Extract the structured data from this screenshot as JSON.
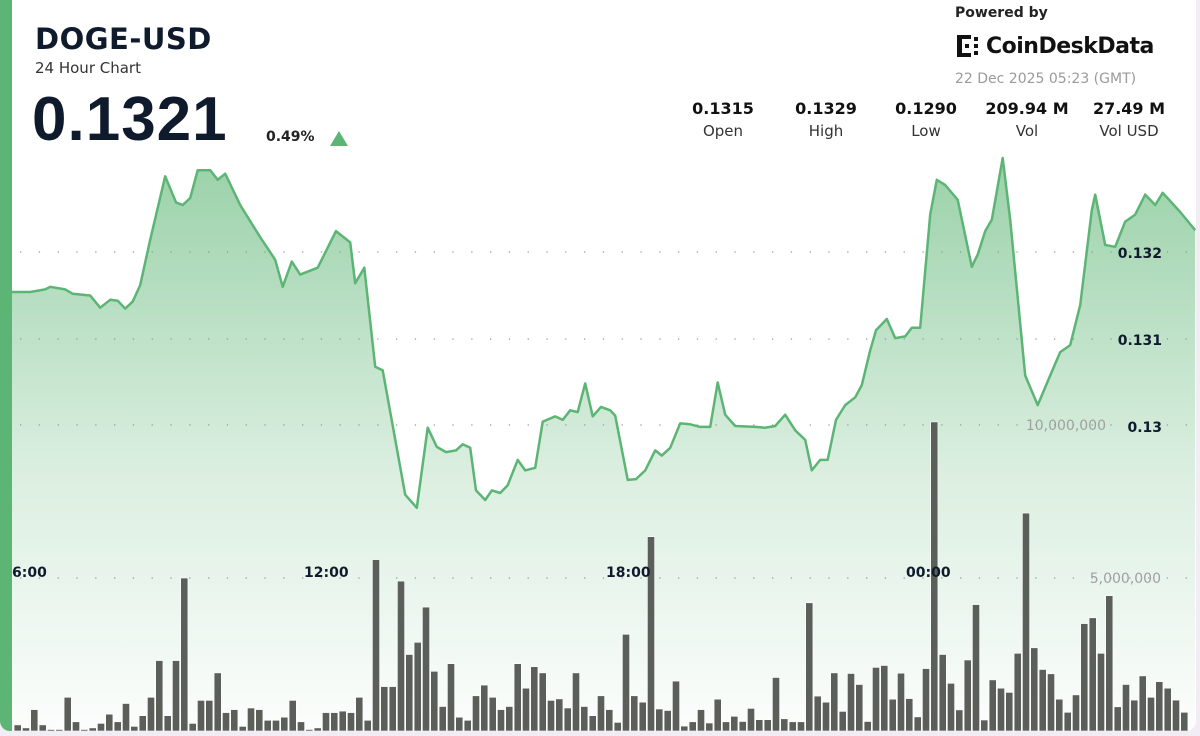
{
  "header": {
    "symbol": "DOGE-USD",
    "subtitle": "24 Hour Chart",
    "price": "0.1321",
    "change": "0.49%",
    "change_direction": "up",
    "powered_by": "Powered by",
    "brand": "CoinDeskData",
    "timestamp": "22 Dec 2025 05:23 (GMT)"
  },
  "stats": [
    {
      "value": "0.1315",
      "label": "Open"
    },
    {
      "value": "0.1329",
      "label": "High"
    },
    {
      "value": "0.1290",
      "label": "Low"
    },
    {
      "value": "209.94 M",
      "label": "Vol"
    },
    {
      "value": "27.49 M",
      "label": "Vol USD"
    }
  ],
  "colors": {
    "accent": "#5cb574",
    "line": "#5cb574",
    "volume": "#5a5f5a",
    "up": "#5cb574"
  },
  "chart_data": {
    "type": "area",
    "grid": true,
    "x_ticks": [
      "6:00",
      "12:00",
      "18:00",
      "00:00"
    ],
    "price_ticks": [
      "0.132",
      "0.131",
      "0.13"
    ],
    "volume_ticks": [
      "10,000,000",
      "5,000,000"
    ],
    "price_series": [
      [
        "05:43",
        0.13154
      ],
      [
        "06:05",
        0.13154
      ],
      [
        "06:23",
        0.13157
      ],
      [
        "06:29",
        0.1316
      ],
      [
        "06:47",
        0.13157
      ],
      [
        "06:56",
        0.13152
      ],
      [
        "07:17",
        0.1315
      ],
      [
        "07:29",
        0.13136
      ],
      [
        "07:41",
        0.13145
      ],
      [
        "07:50",
        0.13144
      ],
      [
        "07:59",
        0.13135
      ],
      [
        "08:08",
        0.13143
      ],
      [
        "08:17",
        0.13162
      ],
      [
        "08:29",
        0.13214
      ],
      [
        "08:47",
        0.13287
      ],
      [
        "09:00",
        0.13257
      ],
      [
        "09:08",
        0.13254
      ],
      [
        "09:17",
        0.13262
      ],
      [
        "09:26",
        0.13294
      ],
      [
        "09:41",
        0.13294
      ],
      [
        "09:50",
        0.13283
      ],
      [
        "09:59",
        0.1329
      ],
      [
        "10:17",
        0.13254
      ],
      [
        "10:41",
        0.13217
      ],
      [
        "10:59",
        0.13191
      ],
      [
        "11:08",
        0.1316
      ],
      [
        "11:19",
        0.13189
      ],
      [
        "11:29",
        0.13174
      ],
      [
        "11:50",
        0.13182
      ],
      [
        "12:12",
        0.13224
      ],
      [
        "12:29",
        0.13211
      ],
      [
        "12:35",
        0.13164
      ],
      [
        "12:46",
        0.13182
      ],
      [
        "12:59",
        0.13068
      ],
      [
        "13:08",
        0.13064
      ],
      [
        "13:35",
        0.12921
      ],
      [
        "13:49",
        0.12906
      ],
      [
        "14:02",
        0.12998
      ],
      [
        "14:13",
        0.12976
      ],
      [
        "14:24",
        0.1297
      ],
      [
        "14:36",
        0.12972
      ],
      [
        "14:44",
        0.12979
      ],
      [
        "14:53",
        0.12975
      ],
      [
        "15:00",
        0.12926
      ],
      [
        "15:11",
        0.12915
      ],
      [
        "15:19",
        0.12926
      ],
      [
        "15:29",
        0.12923
      ],
      [
        "15:38",
        0.12932
      ],
      [
        "15:50",
        0.12961
      ],
      [
        "15:59",
        0.12949
      ],
      [
        "16:11",
        0.12952
      ],
      [
        "16:20",
        0.13005
      ],
      [
        "16:35",
        0.13011
      ],
      [
        "16:44",
        0.13007
      ],
      [
        "16:53",
        0.13018
      ],
      [
        "17:02",
        0.13016
      ],
      [
        "17:11",
        0.13049
      ],
      [
        "17:20",
        0.13011
      ],
      [
        "17:30",
        0.13022
      ],
      [
        "17:41",
        0.13018
      ],
      [
        "17:47",
        0.13012
      ],
      [
        "18:02",
        0.12938
      ],
      [
        "18:12",
        0.12939
      ],
      [
        "18:23",
        0.12949
      ],
      [
        "18:35",
        0.12972
      ],
      [
        "18:43",
        0.12966
      ],
      [
        "18:53",
        0.12975
      ],
      [
        "19:05",
        0.13003
      ],
      [
        "19:17",
        0.13002
      ],
      [
        "19:29",
        0.12999
      ],
      [
        "19:41",
        0.12999
      ],
      [
        "19:50",
        0.1305
      ],
      [
        "19:59",
        0.13013
      ],
      [
        "20:11",
        0.13
      ],
      [
        "20:35",
        0.12999
      ],
      [
        "20:47",
        0.12998
      ],
      [
        "20:59",
        0.13
      ],
      [
        "21:11",
        0.13013
      ],
      [
        "21:23",
        0.12995
      ],
      [
        "21:35",
        0.12984
      ],
      [
        "21:43",
        0.12949
      ],
      [
        "21:53",
        0.12961
      ],
      [
        "22:02",
        0.12961
      ],
      [
        "22:12",
        0.13007
      ],
      [
        "22:23",
        0.13024
      ],
      [
        "22:35",
        0.13033
      ],
      [
        "22:43",
        0.13047
      ],
      [
        "22:53",
        0.13087
      ],
      [
        "23:00",
        0.1311
      ],
      [
        "23:13",
        0.13123
      ],
      [
        "23:23",
        0.13101
      ],
      [
        "23:35",
        0.13103
      ],
      [
        "23:43",
        0.13113
      ],
      [
        "23:53",
        0.13113
      ],
      [
        "00:05",
        0.13243
      ],
      [
        "00:13",
        0.13283
      ],
      [
        "00:23",
        0.13277
      ],
      [
        "00:38",
        0.1326
      ],
      [
        "00:55",
        0.13183
      ],
      [
        "01:02",
        0.13197
      ],
      [
        "01:11",
        0.13224
      ],
      [
        "01:19",
        0.13237
      ],
      [
        "01:32",
        0.13308
      ],
      [
        "01:41",
        0.13237
      ],
      [
        "01:59",
        0.13058
      ],
      [
        "02:14",
        0.13024
      ],
      [
        "02:29",
        0.13058
      ],
      [
        "02:41",
        0.13085
      ],
      [
        "02:53",
        0.13093
      ],
      [
        "03:05",
        0.13139
      ],
      [
        "03:19",
        0.13248
      ],
      [
        "03:23",
        0.13266
      ],
      [
        "03:35",
        0.13208
      ],
      [
        "03:47",
        0.13206
      ],
      [
        "03:59",
        0.13235
      ],
      [
        "04:11",
        0.13243
      ],
      [
        "04:23",
        0.13266
      ],
      [
        "04:35",
        0.13254
      ],
      [
        "04:44",
        0.13268
      ],
      [
        "05:05",
        0.13246
      ],
      [
        "05:23",
        0.13225
      ]
    ],
    "volume_series": {
      "start": "05:50",
      "interval_min": 10,
      "values": [
        200000,
        100000,
        700000,
        200000,
        50000,
        50000,
        1100000,
        300000,
        50000,
        100000,
        250000,
        550000,
        300000,
        900000,
        150000,
        500000,
        1100000,
        2300000,
        500000,
        2300000,
        5000000,
        250000,
        1000000,
        1000000,
        1900000,
        600000,
        700000,
        150000,
        750000,
        700000,
        350000,
        350000,
        450000,
        1000000,
        300000,
        50000,
        100000,
        600000,
        600000,
        650000,
        600000,
        1100000,
        350000,
        5600000,
        1450000,
        1450000,
        4900000,
        2500000,
        2900000,
        4050000,
        1950000,
        800000,
        2200000,
        450000,
        350000,
        1150000,
        1500000,
        1100000,
        700000,
        800000,
        2200000,
        1400000,
        2100000,
        1900000,
        1000000,
        1050000,
        750000,
        1900000,
        800000,
        500000,
        1150000,
        700000,
        280000,
        3160000,
        1150000,
        940000,
        6350000,
        720000,
        670000,
        1630000,
        160000,
        300000,
        700000,
        260000,
        1040000,
        300000,
        480000,
        310000,
        740000,
        370000,
        370000,
        1750000,
        400000,
        300000,
        300000,
        4190000,
        1140000,
        940000,
        1900000,
        640000,
        1880000,
        1520000,
        310000,
        2080000,
        2140000,
        1040000,
        1890000,
        1060000,
        460000,
        2040000,
        10100000,
        2500000,
        1560000,
        690000,
        2320000,
        4130000,
        360000,
        1670000,
        1400000,
        1260000,
        2540000,
        7120000,
        2720000,
        2010000,
        1870000,
        1040000,
        610000,
        1180000,
        3510000,
        3700000,
        2540000,
        4420000,
        790000,
        1520000,
        1010000,
        1800000,
        1100000,
        1610000,
        1400000,
        1010000,
        610000
      ]
    }
  }
}
